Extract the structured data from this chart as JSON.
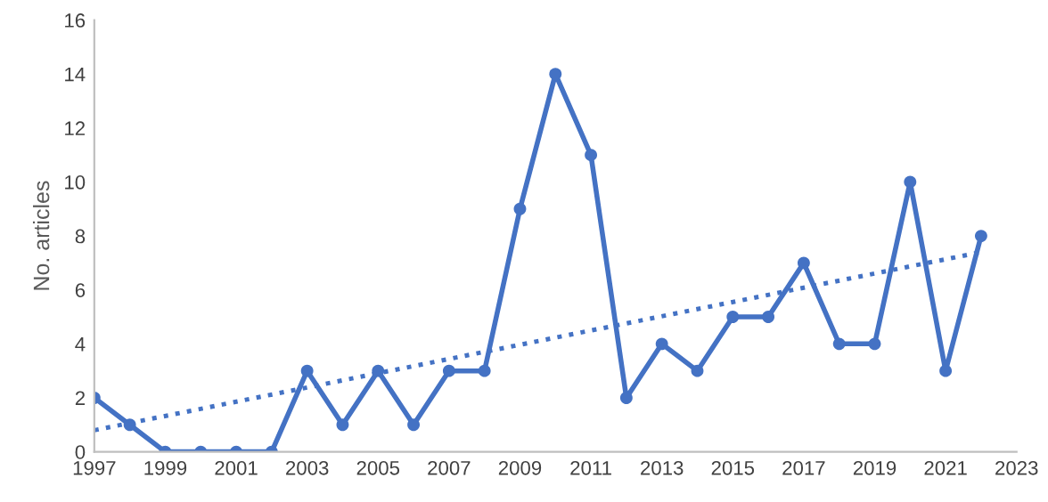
{
  "chart_data": {
    "type": "line",
    "ylabel": "No. articles",
    "x": [
      1997,
      1998,
      1999,
      2000,
      2001,
      2002,
      2003,
      2004,
      2005,
      2006,
      2007,
      2008,
      2009,
      2010,
      2011,
      2012,
      2013,
      2014,
      2015,
      2016,
      2017,
      2018,
      2019,
      2020,
      2021,
      2022
    ],
    "series": [
      {
        "color": "#4472c4",
        "marker": "circle",
        "line_style": "solid",
        "values": [
          2,
          1,
          0,
          0,
          0,
          0,
          3,
          1,
          3,
          1,
          3,
          3,
          9,
          14,
          11,
          2,
          4,
          3,
          5,
          5,
          7,
          4,
          4,
          10,
          3,
          8
        ]
      },
      {
        "type": "line",
        "color": "#4472c4",
        "marker": "none",
        "line_style": "dotted",
        "x": [
          1997,
          2022
        ],
        "values": [
          0.8,
          7.4
        ]
      }
    ],
    "xlim": [
      1997,
      2023
    ],
    "xticks": [
      1997,
      1999,
      2001,
      2003,
      2005,
      2007,
      2009,
      2011,
      2013,
      2015,
      2017,
      2019,
      2021,
      2023
    ],
    "ylim": [
      0,
      16
    ],
    "yticks": [
      0,
      2,
      4,
      6,
      8,
      10,
      12,
      14,
      16
    ],
    "grid": false,
    "legend": false
  }
}
